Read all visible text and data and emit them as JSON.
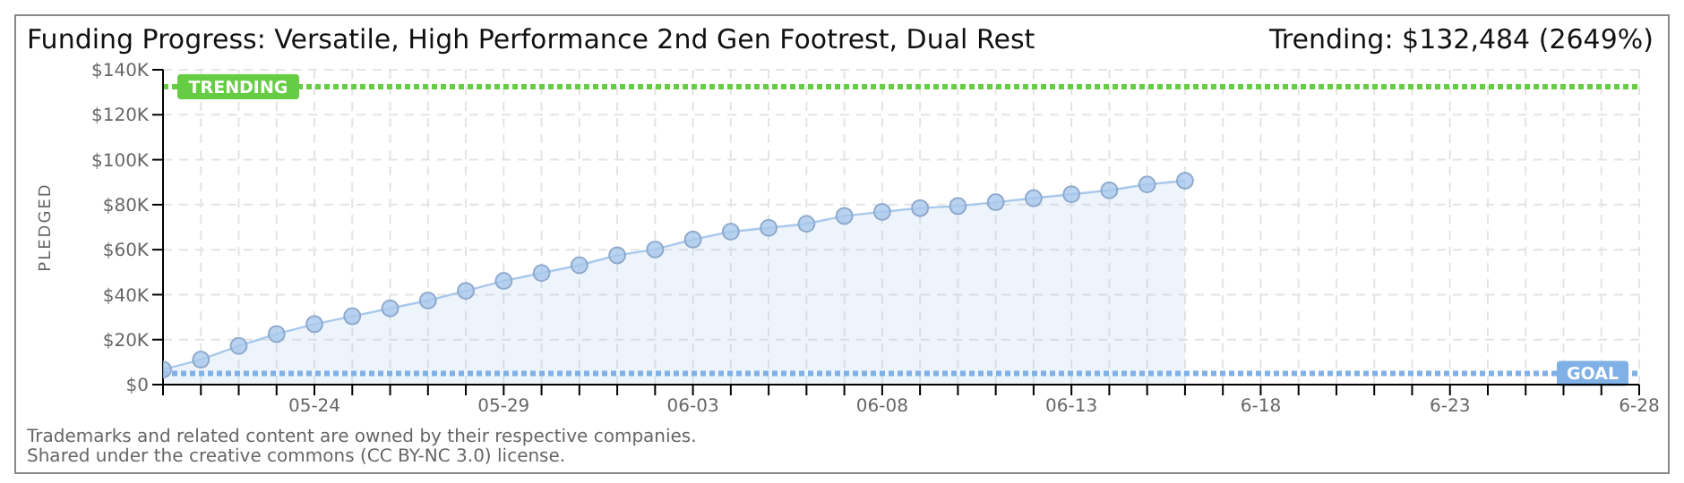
{
  "chart_data": {
    "type": "area",
    "title": "Funding Progress: Versatile, High Performance 2nd Gen Footrest, Dual Rest",
    "subtitle": "Trending: $132,484 (2649%)",
    "ylabel": "PLEDGED",
    "x": [
      "--05-20",
      "--05-21",
      "--05-22",
      "--05-23",
      "--05-24",
      "--05-25",
      "--05-26",
      "--05-27",
      "--05-28",
      "--05-29",
      "--05-30",
      "--05-31",
      "--06-01",
      "--06-02",
      "--06-03",
      "--06-04",
      "--06-05",
      "--06-06",
      "--06-07",
      "--06-08",
      "--06-09",
      "--06-10",
      "--06-11",
      "--06-12",
      "--06-13",
      "--06-14",
      "--06-15",
      "--06-16"
    ],
    "series": [
      {
        "color": "#a8c8ec",
        "values": [
          6700,
          11100,
          17200,
          22500,
          26900,
          30400,
          33900,
          37400,
          41700,
          46100,
          49600,
          53100,
          57500,
          60100,
          64500,
          68000,
          69700,
          71500,
          75000,
          76800,
          78500,
          79400,
          81100,
          82900,
          84600,
          86400,
          89000,
          90700
        ]
      }
    ],
    "xlim": [
      "--05-20",
      "--06-28"
    ],
    "xticks": [
      {
        "value": "--05-20",
        "label": null
      },
      {
        "value": "--05-21",
        "label": null
      },
      {
        "value": "--05-22",
        "label": null
      },
      {
        "value": "--05-23",
        "label": null
      },
      {
        "value": "--05-24",
        "label": "05-24"
      },
      {
        "value": "--05-25",
        "label": null
      },
      {
        "value": "--05-26",
        "label": null
      },
      {
        "value": "--05-27",
        "label": null
      },
      {
        "value": "--05-28",
        "label": null
      },
      {
        "value": "--05-29",
        "label": "05-29"
      },
      {
        "value": "--05-30",
        "label": null
      },
      {
        "value": "--05-31",
        "label": null
      },
      {
        "value": "--06-01",
        "label": null
      },
      {
        "value": "--06-02",
        "label": null
      },
      {
        "value": "--06-03",
        "label": "06-03"
      },
      {
        "value": "--06-04",
        "label": null
      },
      {
        "value": "--06-05",
        "label": null
      },
      {
        "value": "--06-06",
        "label": null
      },
      {
        "value": "--06-07",
        "label": null
      },
      {
        "value": "--06-08",
        "label": "06-08"
      },
      {
        "value": "--06-09",
        "label": null
      },
      {
        "value": "--06-10",
        "label": null
      },
      {
        "value": "--06-11",
        "label": null
      },
      {
        "value": "--06-12",
        "label": null
      },
      {
        "value": "--06-13",
        "label": "06-13"
      },
      {
        "value": "--06-14",
        "label": null
      },
      {
        "value": "--06-15",
        "label": null
      },
      {
        "value": "--06-16",
        "label": null
      },
      {
        "value": "--06-17",
        "label": null
      },
      {
        "value": "--06-18",
        "label": "6-18"
      },
      {
        "value": "--06-19",
        "label": null
      },
      {
        "value": "--06-20",
        "label": null
      },
      {
        "value": "--06-21",
        "label": null
      },
      {
        "value": "--06-22",
        "label": null
      },
      {
        "value": "--06-23",
        "label": "6-23"
      },
      {
        "value": "--06-24",
        "label": null
      },
      {
        "value": "--06-25",
        "label": null
      },
      {
        "value": "--06-26",
        "label": null
      },
      {
        "value": "--06-27",
        "label": null
      },
      {
        "value": "--06-28",
        "label": "6-28"
      }
    ],
    "ylim": [
      0,
      140000
    ],
    "yticks": [
      {
        "value": 0,
        "label": "$0"
      },
      {
        "value": 20000,
        "label": "$20K"
      },
      {
        "value": 40000,
        "label": "$40K"
      },
      {
        "value": 60000,
        "label": "$60K"
      },
      {
        "value": 80000,
        "label": "$80K"
      },
      {
        "value": 100000,
        "label": "$100K"
      },
      {
        "value": 120000,
        "label": "$120K"
      },
      {
        "value": 140000,
        "label": "$140K"
      }
    ],
    "ref_lines": [
      {
        "axis": "y",
        "value": 132484,
        "label": "TRENDING",
        "color": "#66cc44",
        "line_style": "dotted"
      },
      {
        "axis": "y",
        "value": 5000,
        "label": "GOAL",
        "color": "#7fb0e6",
        "line_style": "dotted"
      }
    ],
    "grid": true,
    "marker": "circle",
    "line_style": "solid",
    "legend": false,
    "annotations": [
      "Trademarks and related content are owned by their respective companies.",
      "Shared under the creative commons (CC BY-NC 3.0) license."
    ]
  }
}
